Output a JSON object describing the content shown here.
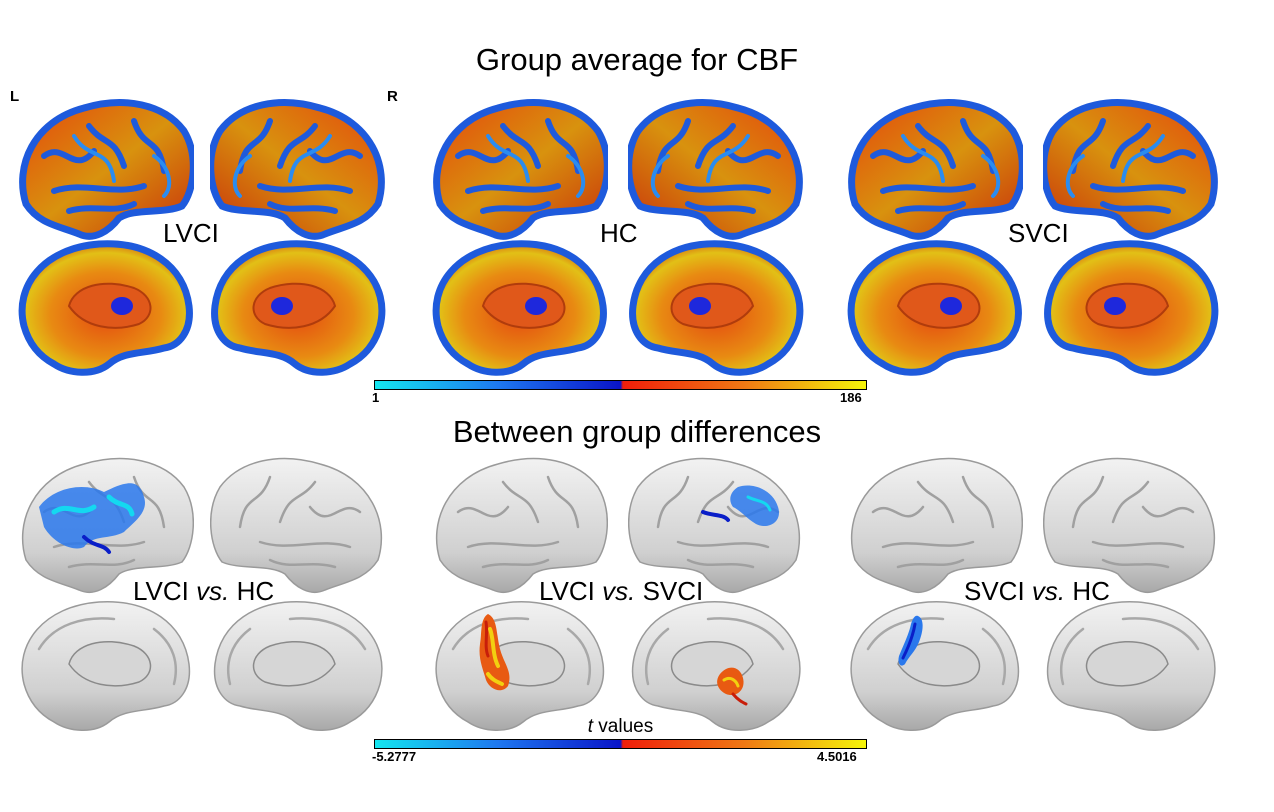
{
  "figure": {
    "title_top": "Group average for CBF",
    "title_bottom": "Between group differences",
    "hemisphere_left": "L",
    "hemisphere_right": "R"
  },
  "groups_top": [
    {
      "label": "LVCI"
    },
    {
      "label": "HC"
    },
    {
      "label": "SVCI"
    }
  ],
  "comparisons_bottom": [
    {
      "label_a": "LVCI ",
      "vs": "vs.",
      "label_b": " HC"
    },
    {
      "label_a": "LVCI ",
      "vs": "vs.",
      "label_b": " SVCI"
    },
    {
      "label_a": "SVCI ",
      "vs": "vs.",
      "label_b": " HC"
    }
  ],
  "colorbar_top": {
    "min": "1",
    "max": "186"
  },
  "colorbar_bottom": {
    "title_italic": "t",
    "title_rest": " values",
    "min": "-5.2777",
    "max": "4.5016"
  },
  "colors": {
    "cbf_low": "#14e6f0",
    "cbf_mid_blue": "#0a14c8",
    "cbf_mid_red": "#f01e0a",
    "cbf_high": "#f5f50a",
    "surface_gray": "#d4d4d4"
  }
}
